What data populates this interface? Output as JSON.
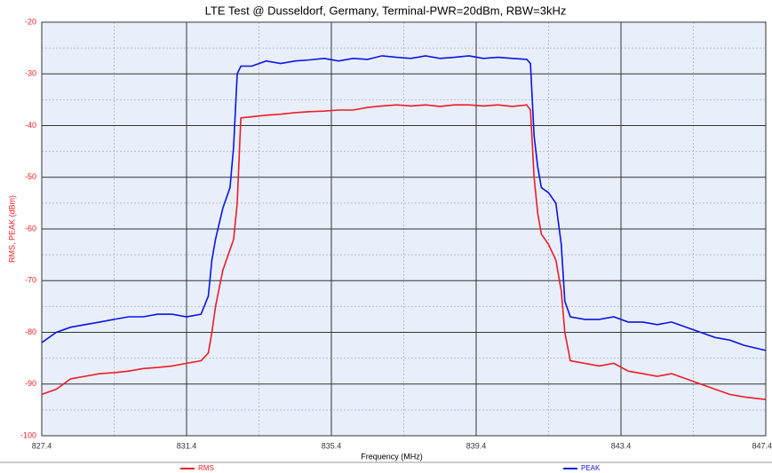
{
  "chart_data": {
    "type": "line",
    "title": "LTE Test @ Dusseldorf, Germany, Terminal-PWR=20dBm, RBW=3kHz",
    "xlabel": "Frequency (MHz)",
    "ylabel": "RMS, PEAK (dBm)",
    "x": [
      827.4,
      827.8,
      828.2,
      828.6,
      829.0,
      829.4,
      829.8,
      830.2,
      830.6,
      831.0,
      831.4,
      831.8,
      832.0,
      832.1,
      832.2,
      832.4,
      832.6,
      832.7,
      832.8,
      832.9,
      833.2,
      833.6,
      834.0,
      834.4,
      834.8,
      835.2,
      835.6,
      836.0,
      836.4,
      836.8,
      837.2,
      837.6,
      838.0,
      838.4,
      838.8,
      839.2,
      839.6,
      840.0,
      840.4,
      840.8,
      840.9,
      841.0,
      841.1,
      841.2,
      841.4,
      841.6,
      841.75,
      841.85,
      842.0,
      842.4,
      842.8,
      843.2,
      843.6,
      844.0,
      844.4,
      844.8,
      845.2,
      845.6,
      846.0,
      846.4,
      846.8,
      847.4
    ],
    "series": [
      {
        "name": "RMS",
        "color": "#ee1c24",
        "values": [
          -92,
          -91,
          -89,
          -88.5,
          -88,
          -87.8,
          -87.5,
          -87,
          -86.8,
          -86.5,
          -86,
          -85.5,
          -84,
          -80,
          -75,
          -68,
          -64,
          -62,
          -55,
          -38.5,
          -38.3,
          -38,
          -37.8,
          -37.5,
          -37.3,
          -37.2,
          -37,
          -37,
          -36.5,
          -36.2,
          -36,
          -36.2,
          -36,
          -36.3,
          -36,
          -36,
          -36.2,
          -36,
          -36.3,
          -36,
          -37,
          -50,
          -57,
          -61,
          -63,
          -66,
          -72,
          -80,
          -85.5,
          -86,
          -86.5,
          -86,
          -87.5,
          -88,
          -88.5,
          -88,
          -89,
          -90,
          -91,
          -92,
          -92.5,
          -93
        ]
      },
      {
        "name": "PEAK",
        "color": "#0a14e6",
        "values": [
          -82,
          -80,
          -79,
          -78.5,
          -78,
          -77.5,
          -77,
          -77,
          -76.5,
          -76.5,
          -77,
          -76.5,
          -73,
          -66,
          -62,
          -56,
          -52,
          -44,
          -30,
          -28.5,
          -28.5,
          -27.5,
          -28,
          -27.5,
          -27.3,
          -27,
          -27.5,
          -27,
          -27.2,
          -26.5,
          -26.8,
          -27,
          -26.5,
          -27,
          -26.8,
          -26.5,
          -27,
          -26.8,
          -27,
          -27.2,
          -28,
          -42,
          -48,
          -52,
          -53,
          -55,
          -63,
          -74,
          -77,
          -77.5,
          -77.5,
          -77,
          -78,
          -78,
          -78.5,
          -78,
          -79,
          -80,
          -81,
          -81.5,
          -82.5,
          -83.5
        ]
      }
    ],
    "xlim": [
      827.4,
      847.4
    ],
    "xticks": [
      827.4,
      831.4,
      835.4,
      839.4,
      843.4,
      847.4
    ],
    "ylim": [
      -100,
      -20
    ],
    "yticks": [
      -100,
      -90,
      -80,
      -70,
      -60,
      -50,
      -40,
      -30,
      -20
    ],
    "grid": true,
    "legend": "bottom"
  }
}
